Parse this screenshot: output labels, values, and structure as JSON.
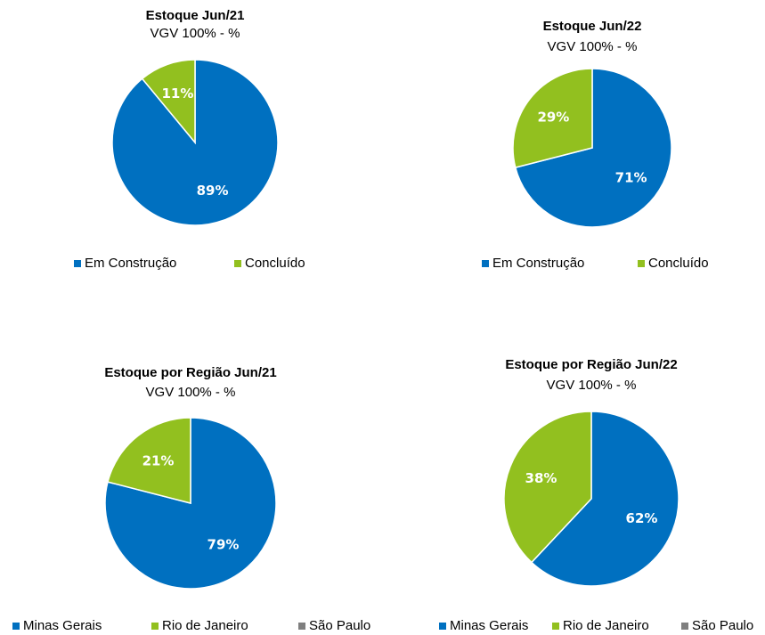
{
  "chart_data": [
    {
      "type": "pie",
      "title": "Estoque Jun/21",
      "subtitle": "VGV 100% - %",
      "categories": [
        "Em Construção",
        "Concluído"
      ],
      "values": [
        89,
        11
      ],
      "value_labels": [
        "89%",
        "11%"
      ],
      "colors": [
        "#0070c0",
        "#92c01f"
      ]
    },
    {
      "type": "pie",
      "title": "Estoque Jun/22",
      "subtitle": "VGV 100% - %",
      "categories": [
        "Em Construção",
        "Concluído"
      ],
      "values": [
        71,
        29
      ],
      "value_labels": [
        "71%",
        "29%"
      ],
      "colors": [
        "#0070c0",
        "#92c01f"
      ]
    },
    {
      "type": "pie",
      "title": "Estoque por Região Jun/21",
      "subtitle": "VGV 100% - %",
      "categories": [
        "Minas Gerais",
        "Rio de Janeiro",
        "São Paulo"
      ],
      "values": [
        79,
        21,
        0
      ],
      "value_labels": [
        "79%",
        "21%",
        null
      ],
      "colors": [
        "#0070c0",
        "#92c01f",
        "#7f7f7f"
      ]
    },
    {
      "type": "pie",
      "title": "Estoque por Região Jun/22",
      "subtitle": "VGV 100% - %",
      "categories": [
        "Minas Gerais",
        "Rio de Janeiro",
        "São Paulo"
      ],
      "values": [
        62,
        38,
        0
      ],
      "value_labels": [
        "62%",
        "38%",
        null
      ],
      "colors": [
        "#0070c0",
        "#92c01f",
        "#7f7f7f"
      ]
    }
  ]
}
